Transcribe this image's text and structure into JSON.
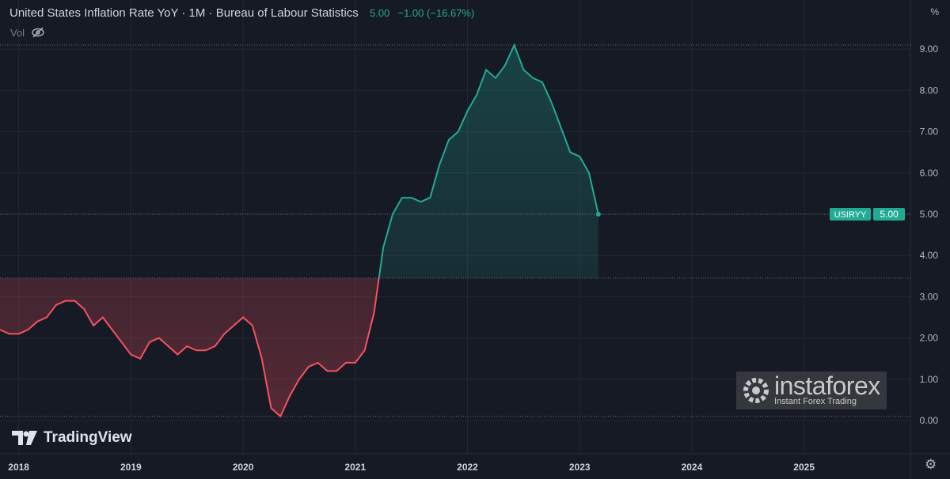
{
  "header": {
    "title": "United States Inflation Rate YoY · 1M · Bureau of Labour Statistics",
    "value": "5.00",
    "change": "−1.00 (−16.67%)",
    "vol_label": "Vol"
  },
  "axis_unit": "%",
  "symbol_label": {
    "symbol": "USIRYY",
    "value": "5.00"
  },
  "branding": {
    "tradingview": "TradingView",
    "instaforex": "instaforex",
    "instaforex_sub": "Instant Forex Trading"
  },
  "colors": {
    "up": "#22ab94",
    "down": "#f7525f",
    "bg": "#161a25",
    "grid": "#232733"
  },
  "chart_data": {
    "type": "line",
    "title": "United States Inflation Rate YoY",
    "x_start": "2017-11",
    "x_step": "month",
    "values": [
      2.2,
      2.1,
      2.1,
      2.2,
      2.4,
      2.5,
      2.8,
      2.9,
      2.9,
      2.7,
      2.3,
      2.5,
      2.2,
      1.9,
      1.6,
      1.5,
      1.9,
      2.0,
      1.8,
      1.6,
      1.8,
      1.7,
      1.7,
      1.8,
      2.1,
      2.3,
      2.5,
      2.3,
      1.5,
      0.3,
      0.1,
      0.6,
      1.0,
      1.3,
      1.4,
      1.2,
      1.2,
      1.4,
      1.4,
      1.7,
      2.6,
      4.2,
      5.0,
      5.4,
      5.4,
      5.3,
      5.4,
      6.2,
      6.8,
      7.0,
      7.5,
      7.9,
      8.5,
      8.3,
      8.6,
      9.1,
      8.5,
      8.3,
      8.2,
      7.7,
      7.1,
      6.5,
      6.4,
      6.0,
      5.0
    ],
    "baseline": 3.45,
    "x_ticks": [
      "2018",
      "2019",
      "2020",
      "2021",
      "2022",
      "2023",
      "2024",
      "2025"
    ],
    "y_ticks": [
      "0.00",
      "1.00",
      "2.00",
      "3.00",
      "4.00",
      "5.00",
      "6.00",
      "7.00",
      "8.00",
      "9.00"
    ],
    "ylim": [
      0,
      9
    ],
    "grid": true
  }
}
